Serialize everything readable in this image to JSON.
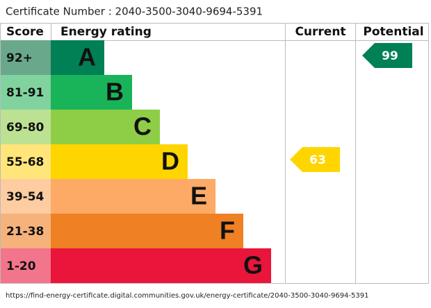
{
  "certificate": "Certificate Number : 2040-3500-3040-9694-5391",
  "headers": {
    "score": "Score",
    "rating": "Energy rating",
    "current": "Current",
    "potential": "Potential"
  },
  "bands": [
    {
      "score": "92+",
      "letter": "A",
      "color": "#008054",
      "light": "#6aa88c"
    },
    {
      "score": "81-91",
      "letter": "B",
      "color": "#19b459",
      "light": "#80d39f"
    },
    {
      "score": "69-80",
      "letter": "C",
      "color": "#8dce46",
      "light": "#bde193"
    },
    {
      "score": "55-68",
      "letter": "D",
      "color": "#ffd500",
      "light": "#ffe57a"
    },
    {
      "score": "39-54",
      "letter": "E",
      "color": "#fcaa65",
      "light": "#fdcca1"
    },
    {
      "score": "21-38",
      "letter": "F",
      "color": "#ef8023",
      "light": "#f5b27b"
    },
    {
      "score": "1-20",
      "letter": "G",
      "color": "#e9153b",
      "light": "#f2758c"
    }
  ],
  "current": 63,
  "potential": 99,
  "url": "https://find-energy-certificate.digital.communities.gov.uk/energy-certificate/2040-3500-3040-9694-5391"
}
